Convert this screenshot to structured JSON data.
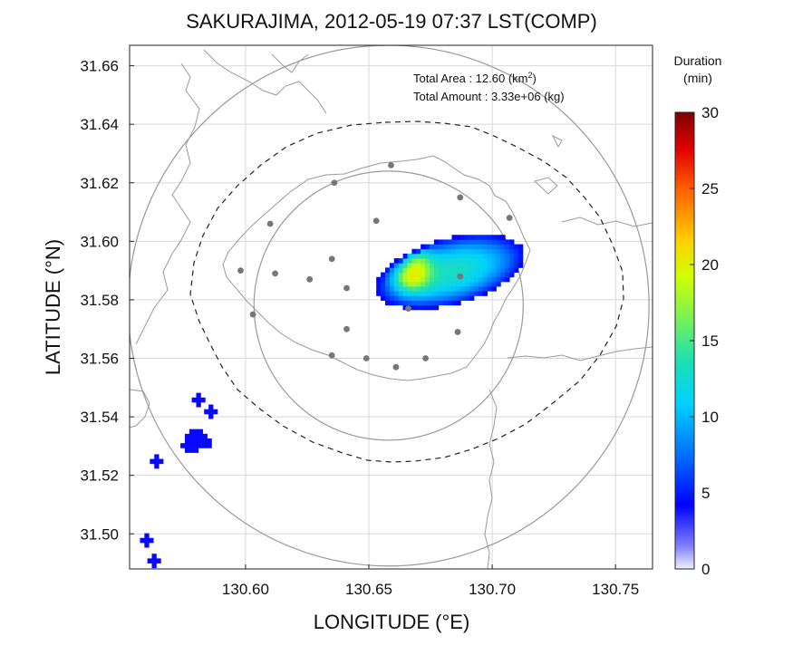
{
  "chart_data": {
    "type": "heatmap",
    "title": "SAKURAJIMA, 2012-05-19 07:37 LST(COMP)",
    "xlabel": "LONGITUDE (°E)",
    "ylabel": "LATITUDE (°N)",
    "xlim": [
      130.553,
      130.765
    ],
    "ylim": [
      31.488,
      31.667
    ],
    "x_ticks": [
      "130.60",
      "130.65",
      "130.70",
      "130.75"
    ],
    "x_tick_values": [
      130.6,
      130.65,
      130.7,
      130.75
    ],
    "y_ticks": [
      "31.50",
      "31.52",
      "31.54",
      "31.56",
      "31.58",
      "31.60",
      "31.62",
      "31.64",
      "31.66"
    ],
    "y_tick_values": [
      31.5,
      31.52,
      31.54,
      31.56,
      31.58,
      31.6,
      31.62,
      31.64,
      31.66
    ],
    "grid": true,
    "annotations": {
      "total_area_label": "Total Area",
      "total_area_sep": " : ",
      "total_area_value": "12.60",
      "total_area_unit_pre": "(km",
      "total_area_unit_sup": "2",
      "total_area_unit_post": ")",
      "total_amount_label": "Total Amount",
      "total_amount_sep": " : ",
      "total_amount_value": "3.33e+06",
      "total_amount_unit": "(kg)"
    },
    "colorbar": {
      "title_line1": "Duration",
      "title_line2": "(min)",
      "range": [
        0,
        30
      ],
      "ticks": [
        "0",
        "5",
        "10",
        "15",
        "20",
        "25",
        "30"
      ],
      "tick_values": [
        0,
        5,
        10,
        15,
        20,
        25,
        30
      ]
    },
    "circles": [
      {
        "center": [
          130.658,
          31.578
        ],
        "radius_lat_deg": 0.046
      },
      {
        "center": [
          130.658,
          31.578
        ],
        "radius_lat_deg": 0.089
      }
    ],
    "station_points": [
      [
        130.659,
        31.626
      ],
      [
        130.636,
        31.62
      ],
      [
        130.687,
        31.615
      ],
      [
        130.707,
        31.608
      ],
      [
        130.61,
        31.606
      ],
      [
        130.653,
        31.607
      ],
      [
        130.598,
        31.59
      ],
      [
        130.612,
        31.589
      ],
      [
        130.635,
        31.594
      ],
      [
        130.626,
        31.587
      ],
      [
        130.641,
        31.584
      ],
      [
        130.687,
        31.588
      ],
      [
        130.603,
        31.575
      ],
      [
        130.641,
        31.57
      ],
      [
        130.686,
        31.569
      ],
      [
        130.635,
        31.561
      ],
      [
        130.649,
        31.56
      ],
      [
        130.673,
        31.56
      ],
      [
        130.661,
        31.557
      ],
      [
        130.666,
        31.577
      ]
    ],
    "ash_region_main": {
      "lon_range": [
        130.653,
        130.712
      ],
      "lat_range": [
        31.575,
        31.602
      ],
      "peak_duration_min": 20
    },
    "ash_patches_sw": [
      {
        "center": [
          130.579,
          31.531
        ],
        "duration_min": 4
      },
      {
        "center": [
          130.58,
          31.545
        ],
        "duration_min": 4
      },
      {
        "center": [
          130.585,
          31.541
        ],
        "duration_min": 4
      },
      {
        "center": [
          130.563,
          31.524
        ],
        "duration_min": 4
      },
      {
        "center": [
          130.559,
          31.497
        ],
        "duration_min": 4
      },
      {
        "center": [
          130.562,
          31.49
        ],
        "duration_min": 4
      }
    ]
  }
}
